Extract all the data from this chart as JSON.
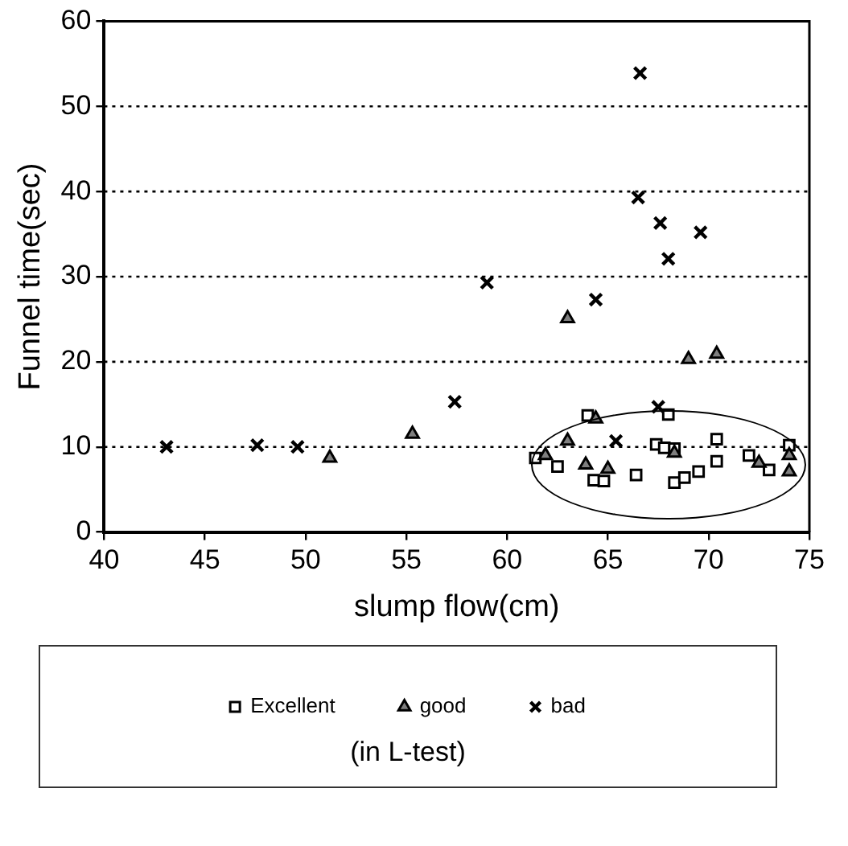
{
  "chart_data": {
    "type": "scatter",
    "xlabel": "slump flow(cm)",
    "ylabel": "Funnel time(sec)",
    "legend_title": "(in L-test)",
    "xlim": [
      40,
      75
    ],
    "xticks": [
      40,
      45,
      50,
      55,
      60,
      65,
      70,
      75
    ],
    "ylim": [
      0,
      60
    ],
    "yticks": [
      0,
      10,
      20,
      30,
      40,
      50,
      60
    ],
    "grid": "y",
    "legend": "bottom",
    "series": [
      {
        "name": "Excellent",
        "color": "#000000",
        "marker": "square",
        "x": [
          64.0,
          68.0,
          67.4,
          67.8,
          68.3,
          70.4,
          61.4,
          62.5,
          64.3,
          64.8,
          66.4,
          68.3,
          68.8,
          69.5,
          70.4,
          72.0,
          73.0,
          74.0
        ],
        "values": [
          13.7,
          13.8,
          10.3,
          9.9,
          9.8,
          10.9,
          8.7,
          7.7,
          6.1,
          6.0,
          6.7,
          5.8,
          6.4,
          7.1,
          8.3,
          9.0,
          7.3,
          10.2
        ]
      },
      {
        "name": "good",
        "color": "#7f7f7f",
        "marker": "triangle",
        "x": [
          51.2,
          55.3,
          63.0,
          69.0,
          70.4,
          64.4,
          63.0,
          68.3,
          61.9,
          63.9,
          65.0,
          72.5,
          74.0,
          74.0
        ],
        "values": [
          8.7,
          11.5,
          25.1,
          20.3,
          20.9,
          13.3,
          10.7,
          9.3,
          9.0,
          7.9,
          7.4,
          8.1,
          9.0,
          7.1
        ]
      },
      {
        "name": "bad",
        "color": "#000000",
        "marker": "cross",
        "x": [
          43.1,
          47.6,
          49.6,
          57.4,
          59.0,
          64.4,
          66.6,
          66.5,
          67.6,
          69.6,
          68.0,
          67.5,
          65.4
        ],
        "values": [
          10,
          10.2,
          10,
          15.3,
          29.3,
          27.3,
          53.9,
          39.3,
          36.3,
          35.2,
          32.1,
          14.7,
          10.7
        ]
      }
    ]
  }
}
